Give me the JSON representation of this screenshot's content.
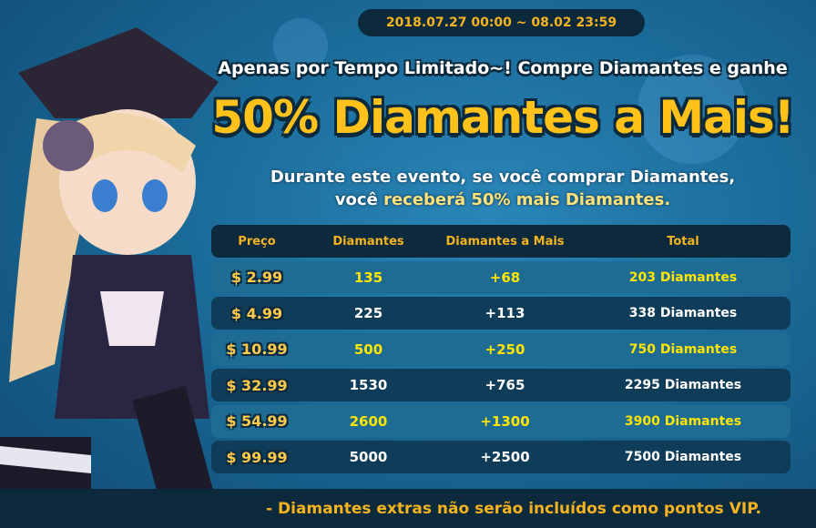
{
  "date_range": "2018.07.27 00:00 ~ 08.02 23:59",
  "subtitle": "Apenas por Tempo Limitado~! Compre Diamantes e ganhe",
  "headline": "50% Diamantes a Mais!",
  "description": {
    "line1": "Durante este evento, se você comprar Diamantes,",
    "line2_prefix": "você ",
    "line2_highlight": "receberá 50% mais Diamantes."
  },
  "table": {
    "headers": [
      "Preço",
      "Diamantes",
      "Diamantes a Mais",
      "Total"
    ],
    "rows": [
      [
        "$ 2.99",
        "135",
        "+68",
        "203 Diamantes"
      ],
      [
        "$ 4.99",
        "225",
        "+113",
        "338 Diamantes"
      ],
      [
        "$ 10.99",
        "500",
        "+250",
        "750 Diamantes"
      ],
      [
        "$ 32.99",
        "1530",
        "+765",
        "2295 Diamantes"
      ],
      [
        "$ 54.99",
        "2600",
        "+1300",
        "3900 Diamantes"
      ],
      [
        "$ 99.99",
        "5000",
        "+2500",
        "7500 Diamantes"
      ]
    ]
  },
  "footer_note": "- Diamantes extras não serão incluídos como pontos VIP.",
  "colors": {
    "accent": "#ffc21a",
    "dark": "#0d2a3c",
    "row_light": "#1e6c93",
    "row_dark": "#0f3c59",
    "highlight": "#ffe600"
  }
}
